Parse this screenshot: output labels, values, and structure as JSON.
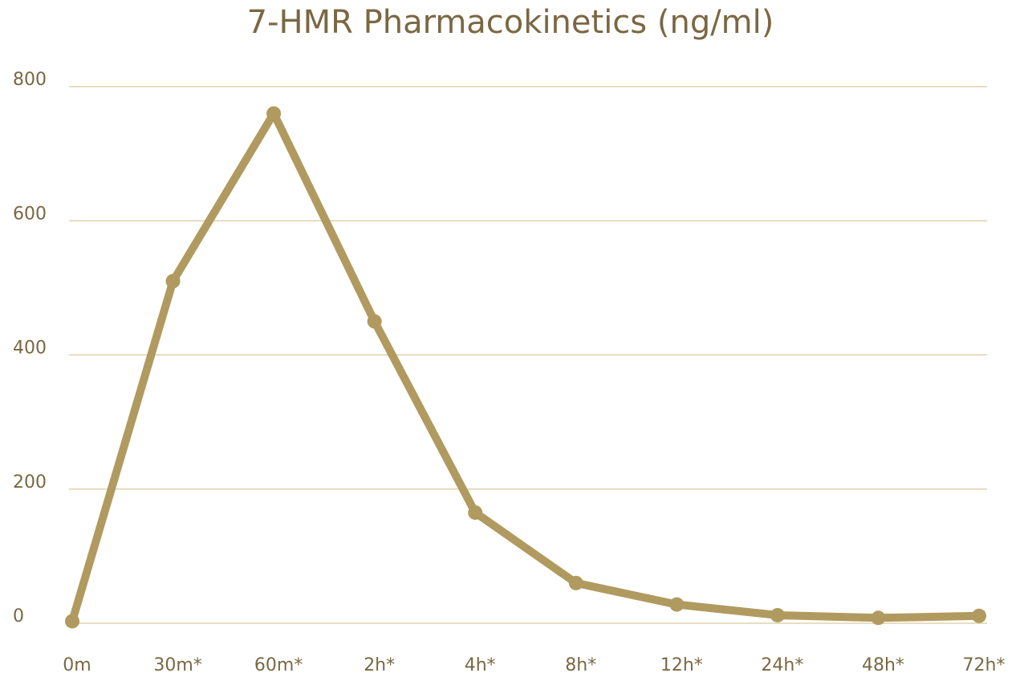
{
  "chart_data": {
    "type": "line",
    "title": "7-HMR Pharmacokinetics (ng/ml)",
    "categories": [
      "0m",
      "30m*",
      "60m*",
      "2h*",
      "4h*",
      "8h*",
      "12h*",
      "24h*",
      "48h*",
      "72h*"
    ],
    "values": [
      3,
      510,
      760,
      450,
      165,
      60,
      28,
      12,
      8,
      11
    ],
    "color": "#b09a5f",
    "ylim": [
      0,
      800
    ],
    "yticks": [
      0,
      200,
      400,
      600,
      800
    ],
    "grid": true
  }
}
